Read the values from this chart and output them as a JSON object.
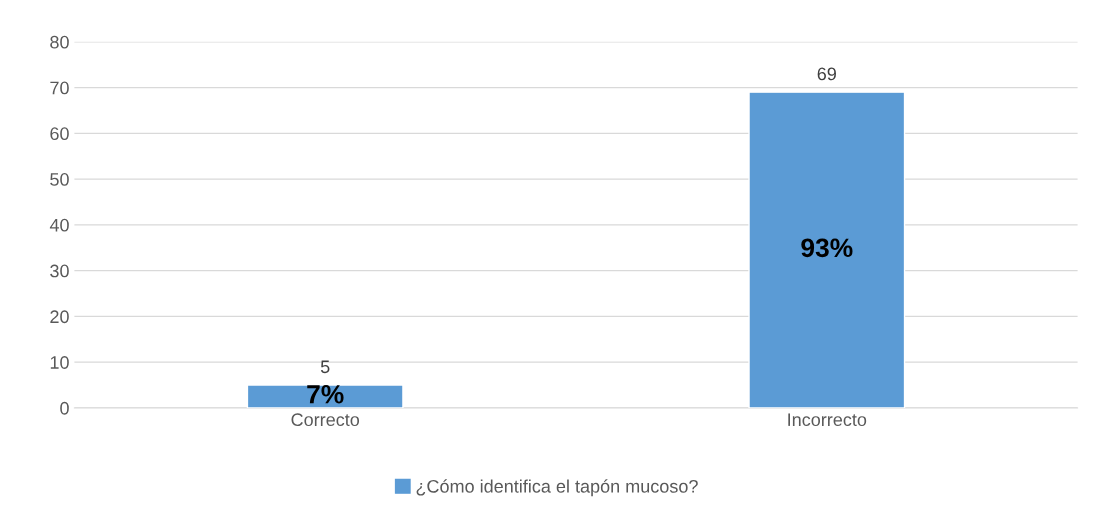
{
  "chart_data": {
    "type": "bar",
    "categories": [
      "Correcto",
      "Incorrecto"
    ],
    "series": [
      {
        "name": "¿Cómo identifica el tapón mucoso?",
        "color": "#5b9bd5",
        "values": [
          5,
          69
        ]
      }
    ],
    "ylim": [
      0,
      80
    ],
    "yticks": [
      0,
      10,
      20,
      30,
      40,
      50,
      60,
      70,
      80
    ],
    "grid": "y",
    "data_labels": true,
    "legend": "bottom",
    "annotations": [
      "7%",
      "93%"
    ]
  }
}
